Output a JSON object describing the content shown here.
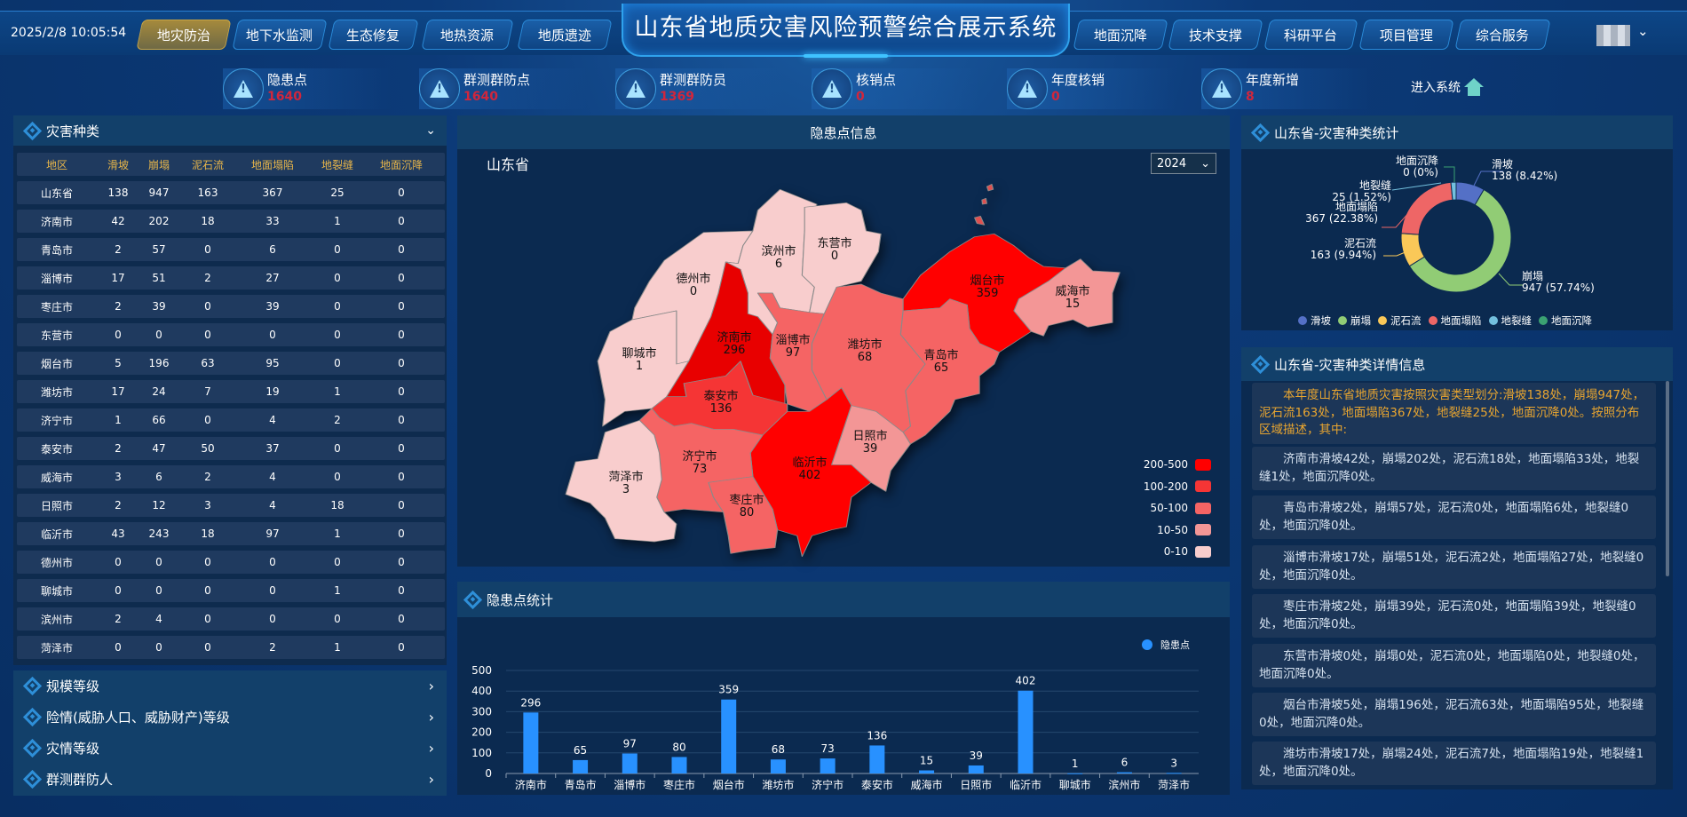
{
  "header": {
    "datetime": "2025/2/8 10:05:54",
    "title": "山东省地质灾害风险预警综合展示系统",
    "left_tabs": [
      "地灾防治",
      "地下水监测",
      "生态修复",
      "地热资源",
      "地质遗迹"
    ],
    "active_tab": "地灾防治",
    "right_tabs": [
      "地面沉降",
      "技术支撑",
      "科研平台",
      "项目管理",
      "综合服务"
    ]
  },
  "stats": [
    {
      "label": "隐患点",
      "value": "1640"
    },
    {
      "label": "群测群防点",
      "value": "1640"
    },
    {
      "label": "群测群防员",
      "value": "1369"
    },
    {
      "label": "核销点",
      "value": "0"
    },
    {
      "label": "年度核销",
      "value": "0"
    },
    {
      "label": "年度新增",
      "value": "8"
    }
  ],
  "enter_system": "进入系统",
  "left": {
    "title": "灾害种类",
    "columns": [
      "地区",
      "滑坡",
      "崩塌",
      "泥石流",
      "地面塌陷",
      "地裂缝",
      "地面沉降"
    ],
    "rows": [
      [
        "山东省",
        "138",
        "947",
        "163",
        "367",
        "25",
        "0"
      ],
      [
        "济南市",
        "42",
        "202",
        "18",
        "33",
        "1",
        "0"
      ],
      [
        "青岛市",
        "2",
        "57",
        "0",
        "6",
        "0",
        "0"
      ],
      [
        "淄博市",
        "17",
        "51",
        "2",
        "27",
        "0",
        "0"
      ],
      [
        "枣庄市",
        "2",
        "39",
        "0",
        "39",
        "0",
        "0"
      ],
      [
        "东营市",
        "0",
        "0",
        "0",
        "0",
        "0",
        "0"
      ],
      [
        "烟台市",
        "5",
        "196",
        "63",
        "95",
        "0",
        "0"
      ],
      [
        "潍坊市",
        "17",
        "24",
        "7",
        "19",
        "1",
        "0"
      ],
      [
        "济宁市",
        "1",
        "66",
        "0",
        "4",
        "2",
        "0"
      ],
      [
        "泰安市",
        "2",
        "47",
        "50",
        "37",
        "0",
        "0"
      ],
      [
        "威海市",
        "3",
        "6",
        "2",
        "4",
        "0",
        "0"
      ],
      [
        "日照市",
        "2",
        "12",
        "3",
        "4",
        "18",
        "0"
      ],
      [
        "临沂市",
        "43",
        "243",
        "18",
        "97",
        "1",
        "0"
      ],
      [
        "德州市",
        "0",
        "0",
        "0",
        "0",
        "0",
        "0"
      ],
      [
        "聊城市",
        "0",
        "0",
        "0",
        "0",
        "1",
        "0"
      ],
      [
        "滨州市",
        "2",
        "4",
        "0",
        "0",
        "0",
        "0"
      ],
      [
        "菏泽市",
        "0",
        "0",
        "0",
        "2",
        "1",
        "0"
      ]
    ],
    "accordion": [
      "规模等级",
      "险情(威胁人口、威胁财产)等级",
      "灾情等级",
      "群测群防人"
    ]
  },
  "map": {
    "title": "隐患点信息",
    "region": "山东省",
    "year": "2024",
    "cities": [
      {
        "name": "济南市",
        "value": 296
      },
      {
        "name": "淄博市",
        "value": 97
      },
      {
        "name": "潍坊市",
        "value": 68
      },
      {
        "name": "青岛市",
        "value": 65
      },
      {
        "name": "烟台市",
        "value": 359
      },
      {
        "name": "威海市",
        "value": 15
      },
      {
        "name": "东营市",
        "value": 0
      },
      {
        "name": "滨州市",
        "value": 6
      },
      {
        "name": "德州市",
        "value": 0
      },
      {
        "name": "聊城市",
        "value": 1
      },
      {
        "name": "泰安市",
        "value": 136
      },
      {
        "name": "济宁市",
        "value": 73
      },
      {
        "name": "枣庄市",
        "value": 80
      },
      {
        "name": "临沂市",
        "value": 402
      },
      {
        "name": "日照市",
        "value": 39
      },
      {
        "name": "菏泽市",
        "value": 3
      }
    ],
    "legend": [
      {
        "label": "200-500",
        "color": "#ff0000"
      },
      {
        "label": "100-200",
        "color": "#f53535"
      },
      {
        "label": "50-100",
        "color": "#f56464"
      },
      {
        "label": "10-50",
        "color": "#f39696"
      },
      {
        "label": "0-10",
        "color": "#f8cdcd"
      }
    ]
  },
  "chart_data": [
    {
      "type": "bar",
      "title": "隐患点统计",
      "legend": [
        "隐患点"
      ],
      "color": "#2891ff",
      "categories": [
        "济南市",
        "青岛市",
        "淄博市",
        "枣庄市",
        "烟台市",
        "潍坊市",
        "济宁市",
        "泰安市",
        "威海市",
        "日照市",
        "临沂市",
        "聊城市",
        "滨州市",
        "菏泽市"
      ],
      "series": [
        {
          "name": "隐患点",
          "values": [
            296,
            65,
            97,
            80,
            359,
            68,
            73,
            136,
            15,
            39,
            402,
            1,
            6,
            3
          ]
        }
      ],
      "yticks": [
        "0",
        "100",
        "200",
        "300",
        "400",
        "500"
      ],
      "ylim": [
        0,
        500
      ]
    },
    {
      "type": "pie",
      "title": "山东省-灾害种类统计",
      "donut": true,
      "slices": [
        {
          "name": "滑坡",
          "value": 138,
          "label": "138 (8.42%)",
          "color": "#5470c6"
        },
        {
          "name": "崩塌",
          "value": 947,
          "label": "947 (57.74%)",
          "color": "#91cc75"
        },
        {
          "name": "泥石流",
          "value": 163,
          "label": "163 (9.94%)",
          "color": "#fac858"
        },
        {
          "name": "地面塌陷",
          "value": 367,
          "label": "367 (22.38%)",
          "color": "#ee6666"
        },
        {
          "name": "地裂缝",
          "value": 25,
          "label": "25 (1.52%)",
          "color": "#73c0de"
        },
        {
          "name": "地面沉降",
          "value": 0,
          "label": "0 (0%)",
          "color": "#3ba272"
        }
      ],
      "legend_placement": "bottom"
    }
  ],
  "details": {
    "title": "山东省-灾害种类详情信息",
    "summary_color": "#e8a530",
    "items": [
      "本年度山东省地质灾害按照灾害类型划分:滑坡138处，崩塌947处，泥石流163处，地面塌陷367处，地裂缝25处，地面沉降0处。按照分布区域描述，其中:",
      "济南市滑坡42处，崩塌202处，泥石流18处，地面塌陷33处，地裂缝1处，地面沉降0处。",
      "青岛市滑坡2处，崩塌57处，泥石流0处，地面塌陷6处，地裂缝0处，地面沉降0处。",
      "淄博市滑坡17处，崩塌51处，泥石流2处，地面塌陷27处，地裂缝0处，地面沉降0处。",
      "枣庄市滑坡2处，崩塌39处，泥石流0处，地面塌陷39处，地裂缝0处，地面沉降0处。",
      "东营市滑坡0处，崩塌0处，泥石流0处，地面塌陷0处，地裂缝0处，地面沉降0处。",
      "烟台市滑坡5处，崩塌196处，泥石流63处，地面塌陷95处，地裂缝0处，地面沉降0处。",
      "潍坊市滑坡17处，崩塌24处，泥石流7处，地面塌陷19处，地裂缝1处，地面沉降0处。"
    ]
  }
}
